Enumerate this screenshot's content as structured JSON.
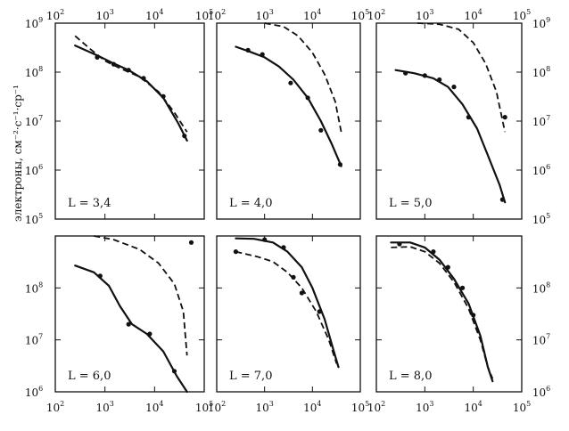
{
  "y_axis_label": "электроны, см⁻²·с⁻¹·ср⁻¹",
  "x_tick_labels": [
    {
      "base": "10",
      "exp": "2"
    },
    {
      "base": "10",
      "exp": "3"
    },
    {
      "base": "10",
      "exp": "4"
    },
    {
      "base": "10",
      "exp": "5"
    }
  ],
  "y_tick_labels": [
    {
      "base": "10",
      "exp": "5"
    },
    {
      "base": "10",
      "exp": "6"
    },
    {
      "base": "10",
      "exp": "7"
    },
    {
      "base": "10",
      "exp": "8"
    },
    {
      "base": "10",
      "exp": "9"
    }
  ],
  "chart_data": [
    {
      "type": "line",
      "label": "L = 3,4",
      "xlim": [
        100,
        100000
      ],
      "ylim": [
        100000,
        1000000000
      ],
      "x_scale": "log",
      "y_scale": "log",
      "series": [
        {
          "style": "solid",
          "points": [
            [
              250,
              350000000
            ],
            [
              700,
              220000000
            ],
            [
              1500,
              150000000
            ],
            [
              3000,
              110000000
            ],
            [
              7000,
              65000000
            ],
            [
              15000,
              30000000
            ],
            [
              30000,
              9000000
            ],
            [
              45000,
              4000000
            ]
          ]
        },
        {
          "style": "dashed",
          "points": [
            [
              250,
              550000000
            ],
            [
              500,
              300000000
            ],
            [
              1000,
              170000000
            ],
            [
              2000,
              120000000
            ],
            [
              5000,
              80000000
            ],
            [
              12000,
              40000000
            ],
            [
              25000,
              15000000
            ],
            [
              45000,
              6000000
            ]
          ]
        }
      ],
      "markers": [
        [
          700,
          200000000
        ],
        [
          1500,
          145000000
        ],
        [
          3000,
          110000000
        ],
        [
          6000,
          75000000
        ],
        [
          15000,
          32000000
        ],
        [
          40000,
          5000000
        ]
      ]
    },
    {
      "type": "line",
      "label": "L = 4,0",
      "xlim": [
        100,
        100000
      ],
      "ylim": [
        100000,
        1000000000
      ],
      "x_scale": "log",
      "y_scale": "log",
      "series": [
        {
          "style": "solid",
          "points": [
            [
              250,
              330000000
            ],
            [
              500,
              260000000
            ],
            [
              1000,
              200000000
            ],
            [
              2000,
              130000000
            ],
            [
              4000,
              70000000
            ],
            [
              8000,
              30000000
            ],
            [
              15000,
              10000000
            ],
            [
              25000,
              3500000
            ],
            [
              40000,
              1200000
            ]
          ]
        },
        {
          "style": "dashed",
          "points": [
            [
              1000,
              1000000000
            ],
            [
              2500,
              850000000
            ],
            [
              5000,
              550000000
            ],
            [
              10000,
              250000000
            ],
            [
              18000,
              90000000
            ],
            [
              30000,
              25000000
            ],
            [
              40000,
              6000000
            ]
          ]
        }
      ],
      "markers": [
        [
          450,
          280000000
        ],
        [
          900,
          230000000
        ],
        [
          3500,
          60000000
        ],
        [
          8000,
          30000000
        ],
        [
          15000,
          6500000
        ],
        [
          38000,
          1300000
        ]
      ]
    },
    {
      "type": "line",
      "label": "L = 5,0",
      "xlim": [
        100,
        100000
      ],
      "ylim": [
        100000,
        1000000000
      ],
      "x_scale": "log",
      "y_scale": "log",
      "series": [
        {
          "style": "solid",
          "points": [
            [
              250,
              110000000
            ],
            [
              600,
              95000000
            ],
            [
              1500,
              75000000
            ],
            [
              3000,
              50000000
            ],
            [
              6000,
              22000000
            ],
            [
              12000,
              7000000
            ],
            [
              20000,
              2000000
            ],
            [
              35000,
              500000
            ],
            [
              45000,
              220000
            ]
          ]
        },
        {
          "style": "dashed",
          "points": [
            [
              700,
              1000000000
            ],
            [
              2000,
              950000000
            ],
            [
              5000,
              750000000
            ],
            [
              10000,
              400000000
            ],
            [
              18000,
              150000000
            ],
            [
              30000,
              40000000
            ],
            [
              45000,
              6000000
            ]
          ]
        }
      ],
      "markers": [
        [
          400,
          95000000
        ],
        [
          1000,
          85000000
        ],
        [
          2000,
          70000000
        ],
        [
          4000,
          50000000
        ],
        [
          8000,
          12000000
        ],
        [
          40000,
          250000
        ],
        [
          45000,
          12000000
        ]
      ]
    },
    {
      "type": "line",
      "label": "L = 6,0",
      "xlim": [
        100,
        100000
      ],
      "ylim": [
        1000000,
        1000000000
      ],
      "x_scale": "log",
      "y_scale": "log",
      "series": [
        {
          "style": "solid",
          "points": [
            [
              250,
              270000000
            ],
            [
              600,
              200000000
            ],
            [
              1200,
              110000000
            ],
            [
              2000,
              45000000
            ],
            [
              3500,
              20000000
            ],
            [
              7000,
              13000000
            ],
            [
              15000,
              6000000
            ],
            [
              28000,
              2000000
            ],
            [
              45000,
              1000000
            ]
          ]
        },
        {
          "style": "dashed",
          "points": [
            [
              600,
              1000000000
            ],
            [
              1500,
              850000000
            ],
            [
              5000,
              550000000
            ],
            [
              12000,
              300000000
            ],
            [
              25000,
              120000000
            ],
            [
              38000,
              35000000
            ],
            [
              45000,
              5000000
            ]
          ]
        }
      ],
      "markers": [
        [
          800,
          170000000
        ],
        [
          3000,
          20000000
        ],
        [
          8000,
          13000000
        ],
        [
          25000,
          2500000
        ],
        [
          55000,
          750000000
        ]
      ]
    },
    {
      "type": "line",
      "label": "L = 7,0",
      "xlim": [
        100,
        100000
      ],
      "ylim": [
        1000000,
        1000000000
      ],
      "x_scale": "log",
      "y_scale": "log",
      "series": [
        {
          "style": "solid",
          "points": [
            [
              250,
              900000000
            ],
            [
              600,
              880000000
            ],
            [
              1500,
              750000000
            ],
            [
              3000,
              500000000
            ],
            [
              6000,
              250000000
            ],
            [
              10000,
              100000000
            ],
            [
              18000,
              25000000
            ],
            [
              28000,
              6000000
            ],
            [
              35000,
              3000000
            ]
          ]
        },
        {
          "style": "dashed",
          "points": [
            [
              250,
              500000000
            ],
            [
              700,
              400000000
            ],
            [
              1500,
              320000000
            ],
            [
              3000,
              200000000
            ],
            [
              6000,
              100000000
            ],
            [
              12000,
              35000000
            ],
            [
              22000,
              10000000
            ],
            [
              32000,
              3500000
            ]
          ]
        }
      ],
      "markers": [
        [
          250,
          500000000
        ],
        [
          1000,
          850000000
        ],
        [
          2500,
          600000000
        ],
        [
          4000,
          160000000
        ],
        [
          6000,
          80000000
        ],
        [
          14000,
          35000000
        ]
      ]
    },
    {
      "type": "line",
      "label": "L = 8,0",
      "xlim": [
        100,
        100000
      ],
      "ylim": [
        1000000,
        1000000000
      ],
      "x_scale": "log",
      "y_scale": "log",
      "series": [
        {
          "style": "solid",
          "points": [
            [
              200,
              750000000
            ],
            [
              500,
              750000000
            ],
            [
              1000,
              600000000
            ],
            [
              2000,
              350000000
            ],
            [
              4000,
              150000000
            ],
            [
              8000,
              50000000
            ],
            [
              14000,
              12000000
            ],
            [
              20000,
              3000000
            ],
            [
              25000,
              1600000
            ]
          ]
        },
        {
          "style": "dashed",
          "points": [
            [
              200,
              600000000
            ],
            [
              500,
              620000000
            ],
            [
              1000,
              500000000
            ],
            [
              2000,
              300000000
            ],
            [
              4000,
              130000000
            ],
            [
              8000,
              40000000
            ],
            [
              14000,
              10000000
            ],
            [
              20000,
              3000000
            ],
            [
              25000,
              1800000
            ]
          ]
        }
      ],
      "markers": [
        [
          300,
          700000000
        ],
        [
          1500,
          500000000
        ],
        [
          3000,
          250000000
        ],
        [
          6000,
          100000000
        ],
        [
          10000,
          30000000
        ]
      ]
    }
  ]
}
